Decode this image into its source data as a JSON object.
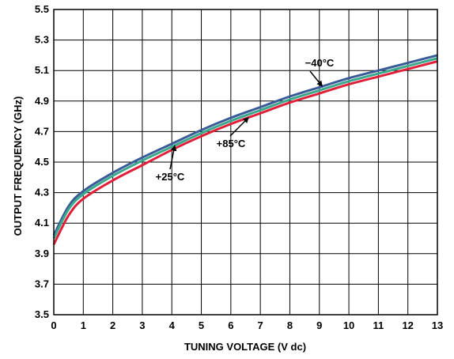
{
  "chart_data": {
    "type": "line",
    "title": "",
    "xlabel": "TUNING VOLTAGE (V dc)",
    "ylabel": "OUTPUT FREQUENCY (GHz)",
    "xlim": [
      0,
      13
    ],
    "ylim": [
      3.5,
      5.5
    ],
    "grid": true,
    "legend": "none (inline annotations)",
    "x_ticks": [
      "0",
      "1",
      "2",
      "3",
      "4",
      "5",
      "6",
      "7",
      "8",
      "9",
      "10",
      "11",
      "12",
      "13"
    ],
    "y_ticks": [
      "3.5",
      "3.7",
      "3.9",
      "4.1",
      "4.3",
      "4.5",
      "4.7",
      "4.9",
      "5.1",
      "5.3",
      "5.5"
    ],
    "x": [
      0,
      0.5,
      1,
      2,
      3,
      4,
      5,
      6,
      7,
      8,
      9,
      10,
      11,
      12,
      13
    ],
    "series": [
      {
        "name": "−40°C",
        "color": "#3a5a98",
        "values": [
          4.02,
          4.21,
          4.31,
          4.43,
          4.53,
          4.62,
          4.71,
          4.79,
          4.86,
          4.93,
          4.99,
          5.05,
          5.1,
          5.15,
          5.2
        ]
      },
      {
        "name": "+25°C",
        "color": "#3aa88a",
        "values": [
          4.0,
          4.19,
          4.29,
          4.41,
          4.51,
          4.6,
          4.69,
          4.77,
          4.84,
          4.91,
          4.97,
          5.03,
          5.08,
          5.13,
          5.18
        ]
      },
      {
        "name": "+85°C",
        "color": "#e0203a",
        "values": [
          3.96,
          4.15,
          4.26,
          4.38,
          4.48,
          4.58,
          4.67,
          4.75,
          4.82,
          4.89,
          4.95,
          5.01,
          5.06,
          5.11,
          5.16
        ]
      }
    ],
    "annotations": [
      {
        "text": "−40°C",
        "target_series": 0
      },
      {
        "text": "+85°C",
        "target_series": 2
      },
      {
        "text": "+25°C",
        "target_series": 1
      }
    ]
  }
}
